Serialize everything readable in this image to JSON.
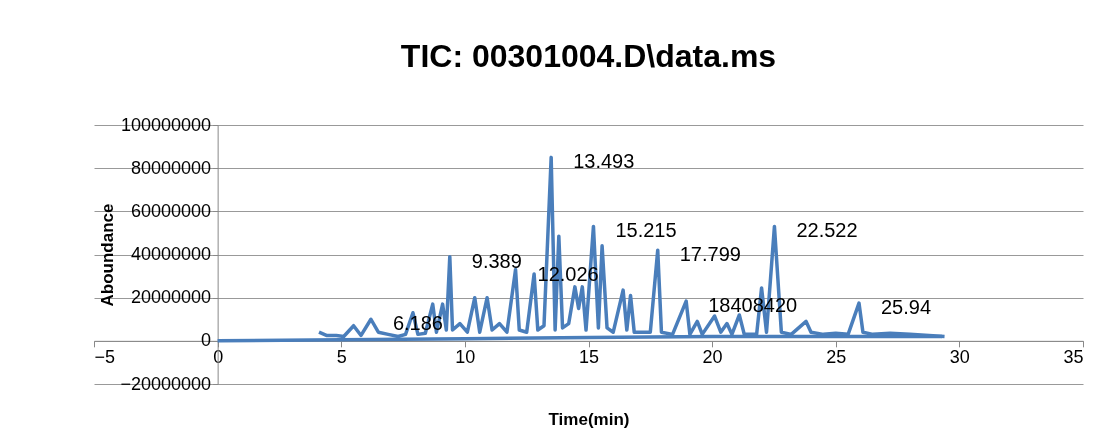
{
  "chart_data": {
    "type": "line",
    "title": "TIC: 00301004.D\\data.ms",
    "xlabel": "Time(min)",
    "ylabel": "Aboundance",
    "xlim": [
      -5,
      35
    ],
    "xticks": [
      -5,
      0,
      5,
      10,
      15,
      20,
      25,
      30,
      35
    ],
    "ylim": [
      -20000000,
      100000000
    ],
    "yticks": [
      -20000000,
      0,
      20000000,
      40000000,
      60000000,
      80000000,
      100000000
    ],
    "grid": "y",
    "legend": false,
    "line_style": "solid",
    "marker": "none",
    "series": [
      {
        "color": "#4a7ebb",
        "x": [
          0,
          5,
          10,
          15,
          20,
          25,
          29.3
        ],
        "values": [
          0,
          500000,
          1000000,
          1500000,
          2000000,
          2000000,
          2000000
        ]
      },
      {
        "color": "#4a7ebb",
        "x": [
          4.1,
          4.4,
          4.8,
          5.1,
          5.5,
          5.8,
          6.2,
          6.5,
          6.9,
          7.3,
          7.6,
          7.9,
          8.1,
          8.4,
          8.7,
          8.85,
          9.1,
          9.25,
          9.39,
          9.5,
          9.8,
          10.1,
          10.4,
          10.6,
          10.9,
          11.1,
          11.4,
          11.7,
          12.05,
          12.2,
          12.5,
          12.8,
          12.95,
          13.2,
          13.49,
          13.65,
          13.8,
          13.95,
          14.2,
          14.45,
          14.6,
          14.75,
          14.9,
          15.2,
          15.4,
          15.55,
          15.75,
          16.0,
          16.4,
          16.55,
          16.7,
          16.85,
          17.2,
          17.5,
          17.8,
          17.95,
          18.4,
          18.95,
          19.1,
          19.4,
          19.6,
          20.1,
          20.35,
          20.6,
          20.8,
          21.1,
          21.3,
          21.8,
          22.0,
          22.2,
          22.52,
          22.8,
          23.2,
          23.8,
          24.0,
          24.5,
          25.0,
          25.5,
          25.94,
          26.1,
          26.5,
          27.2,
          28.0,
          29.4
        ],
        "values": [
          4000000,
          2500000,
          2500000,
          2000000,
          7000000,
          2500000,
          10000000,
          4000000,
          3000000,
          2000000,
          3000000,
          13000000,
          3000000,
          3500000,
          17000000,
          4000000,
          17000000,
          5000000,
          39000000,
          5000000,
          8000000,
          4000000,
          20000000,
          4000000,
          20000000,
          5000000,
          8000000,
          4000000,
          33000000,
          5000000,
          4000000,
          31000000,
          5000000,
          7000000,
          85000000,
          5000000,
          48500000,
          6000000,
          8000000,
          25000000,
          15000000,
          25000000,
          5000000,
          53000000,
          6000000,
          44000000,
          6000000,
          4000000,
          23500000,
          5000000,
          21000000,
          4000000,
          4000000,
          4000000,
          42000000,
          4000000,
          3000000,
          18408420,
          3000000,
          9000000,
          3000000,
          11500000,
          4000000,
          8000000,
          3000000,
          12000000,
          3000000,
          3000000,
          24500000,
          4000000,
          53000000,
          4000000,
          3000000,
          9000000,
          4000000,
          3000000,
          3500000,
          3000000,
          17500000,
          4000000,
          3000000,
          3500000,
          3000000,
          2000000
        ]
      }
    ],
    "annotations": [
      {
        "text": "6.186",
        "x": 6.2,
        "y": 10000000
      },
      {
        "text": "9.389",
        "x": 9.39,
        "y": 39000000
      },
      {
        "text": "12.026",
        "x": 12.05,
        "y": 33000000
      },
      {
        "text": "13.493",
        "x": 13.49,
        "y": 85000000
      },
      {
        "text": "15.215",
        "x": 15.2,
        "y": 53000000
      },
      {
        "text": "17.799",
        "x": 17.8,
        "y": 42000000
      },
      {
        "text": "18408420",
        "x": 18.95,
        "y": 18408420
      },
      {
        "text": "22.522",
        "x": 22.52,
        "y": 53000000
      },
      {
        "text": "25.94",
        "x": 25.94,
        "y": 17500000
      }
    ]
  }
}
